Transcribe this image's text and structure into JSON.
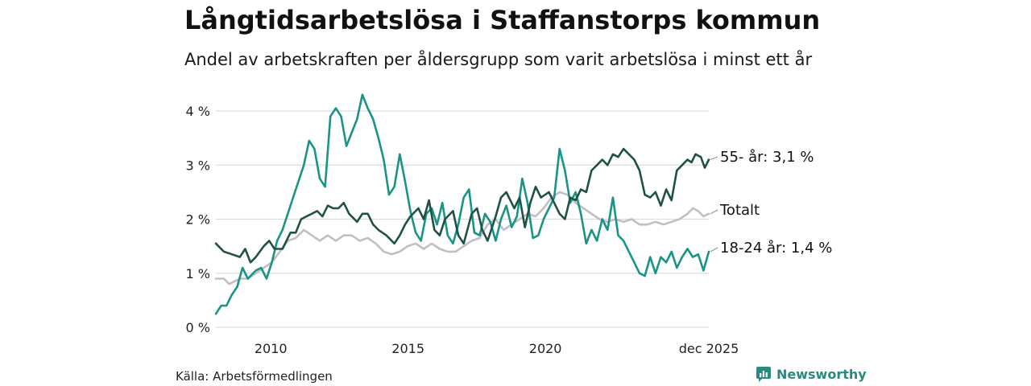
{
  "header": {
    "title": "Långtidsarbetslösa i Staffanstorps kommun",
    "subtitle": "Andel av arbetskraften per åldersgrupp som varit arbetslösa i minst ett år"
  },
  "footer": {
    "source": "Källa: Arbetsförmedlingen",
    "brand": "Newsworthy"
  },
  "colors": {
    "age55": "#1f5245",
    "total": "#c3bec6",
    "age18_24": "#1a9484",
    "grid": "#dddddd"
  },
  "chart_data": {
    "type": "line",
    "title": "Långtidsarbetslösa i Staffanstorps kommun",
    "xlabel": "",
    "ylabel": "",
    "ylim": [
      0,
      4.5
    ],
    "xlim": [
      2008.0,
      2025.95
    ],
    "yticks": [
      0,
      1,
      2,
      3,
      4
    ],
    "ytick_labels": [
      "0 %",
      "1 %",
      "2 %",
      "3 %",
      "4 %"
    ],
    "xticks": [
      2010,
      2015,
      2020,
      2025.95
    ],
    "xtick_labels": [
      "2010",
      "2015",
      "2020",
      "dec 2025"
    ],
    "series": [
      {
        "name": "55- år",
        "key": "age55",
        "end_label": "55- år: 3,1 %",
        "points": [
          [
            2008.0,
            1.55
          ],
          [
            2008.3,
            1.4
          ],
          [
            2008.6,
            1.35
          ],
          [
            2008.9,
            1.3
          ],
          [
            2009.1,
            1.45
          ],
          [
            2009.3,
            1.2
          ],
          [
            2009.5,
            1.3
          ],
          [
            2009.8,
            1.5
          ],
          [
            2010.0,
            1.6
          ],
          [
            2010.2,
            1.45
          ],
          [
            2010.5,
            1.45
          ],
          [
            2010.8,
            1.75
          ],
          [
            2011.0,
            1.75
          ],
          [
            2011.2,
            2.0
          ],
          [
            2011.4,
            2.05
          ],
          [
            2011.6,
            2.1
          ],
          [
            2011.8,
            2.15
          ],
          [
            2012.0,
            2.05
          ],
          [
            2012.2,
            2.25
          ],
          [
            2012.4,
            2.2
          ],
          [
            2012.6,
            2.2
          ],
          [
            2012.8,
            2.3
          ],
          [
            2013.0,
            2.1
          ],
          [
            2013.3,
            1.95
          ],
          [
            2013.5,
            2.1
          ],
          [
            2013.7,
            2.1
          ],
          [
            2013.9,
            1.9
          ],
          [
            2014.1,
            1.8
          ],
          [
            2014.4,
            1.7
          ],
          [
            2014.7,
            1.55
          ],
          [
            2014.9,
            1.7
          ],
          [
            2015.1,
            1.9
          ],
          [
            2015.3,
            2.05
          ],
          [
            2015.6,
            2.2
          ],
          [
            2015.8,
            2.0
          ],
          [
            2016.0,
            2.35
          ],
          [
            2016.2,
            1.8
          ],
          [
            2016.4,
            1.7
          ],
          [
            2016.6,
            2.0
          ],
          [
            2016.9,
            2.15
          ],
          [
            2017.1,
            1.7
          ],
          [
            2017.3,
            1.55
          ],
          [
            2017.6,
            2.1
          ],
          [
            2017.8,
            2.2
          ],
          [
            2018.0,
            1.8
          ],
          [
            2018.2,
            1.6
          ],
          [
            2018.5,
            2.05
          ],
          [
            2018.7,
            2.4
          ],
          [
            2018.9,
            2.5
          ],
          [
            2019.2,
            2.2
          ],
          [
            2019.4,
            2.4
          ],
          [
            2019.6,
            1.85
          ],
          [
            2019.8,
            2.3
          ],
          [
            2020.0,
            2.6
          ],
          [
            2020.2,
            2.4
          ],
          [
            2020.5,
            2.5
          ],
          [
            2020.7,
            2.3
          ],
          [
            2020.9,
            2.1
          ],
          [
            2021.1,
            2.0
          ],
          [
            2021.3,
            2.4
          ],
          [
            2021.5,
            2.35
          ],
          [
            2021.7,
            2.55
          ],
          [
            2021.9,
            2.5
          ],
          [
            2022.1,
            2.9
          ],
          [
            2022.3,
            3.0
          ],
          [
            2022.5,
            3.1
          ],
          [
            2022.7,
            3.0
          ],
          [
            2022.9,
            3.2
          ],
          [
            2023.1,
            3.15
          ],
          [
            2023.3,
            3.3
          ],
          [
            2023.5,
            3.2
          ],
          [
            2023.7,
            3.1
          ],
          [
            2023.9,
            2.9
          ],
          [
            2024.1,
            2.45
          ],
          [
            2024.3,
            2.4
          ],
          [
            2024.5,
            2.5
          ],
          [
            2024.7,
            2.25
          ],
          [
            2024.9,
            2.55
          ],
          [
            2025.1,
            2.35
          ],
          [
            2025.3,
            2.9
          ],
          [
            2025.5,
            3.0
          ],
          [
            2025.7,
            3.1
          ],
          [
            2025.85,
            3.05
          ],
          [
            2026.0,
            3.2
          ],
          [
            2026.2,
            3.15
          ],
          [
            2026.35,
            2.95
          ],
          [
            2026.5,
            3.1
          ]
        ]
      },
      {
        "name": "Totalt",
        "key": "total",
        "end_label": "Totalt",
        "points": [
          [
            2008.0,
            0.9
          ],
          [
            2008.3,
            0.9
          ],
          [
            2008.5,
            0.8
          ],
          [
            2008.9,
            0.9
          ],
          [
            2009.2,
            0.9
          ],
          [
            2009.5,
            1.0
          ],
          [
            2009.8,
            1.1
          ],
          [
            2010.1,
            1.2
          ],
          [
            2010.4,
            1.4
          ],
          [
            2010.7,
            1.6
          ],
          [
            2011.0,
            1.65
          ],
          [
            2011.3,
            1.8
          ],
          [
            2011.6,
            1.7
          ],
          [
            2011.9,
            1.6
          ],
          [
            2012.2,
            1.7
          ],
          [
            2012.5,
            1.6
          ],
          [
            2012.8,
            1.7
          ],
          [
            2013.1,
            1.7
          ],
          [
            2013.4,
            1.6
          ],
          [
            2013.7,
            1.65
          ],
          [
            2014.0,
            1.55
          ],
          [
            2014.3,
            1.4
          ],
          [
            2014.6,
            1.35
          ],
          [
            2014.9,
            1.4
          ],
          [
            2015.2,
            1.5
          ],
          [
            2015.5,
            1.55
          ],
          [
            2015.8,
            1.45
          ],
          [
            2016.1,
            1.55
          ],
          [
            2016.4,
            1.45
          ],
          [
            2016.7,
            1.4
          ],
          [
            2017.0,
            1.4
          ],
          [
            2017.3,
            1.5
          ],
          [
            2017.6,
            1.6
          ],
          [
            2017.9,
            1.65
          ],
          [
            2018.2,
            1.9
          ],
          [
            2018.5,
            2.0
          ],
          [
            2018.8,
            1.8
          ],
          [
            2019.1,
            1.9
          ],
          [
            2019.4,
            2.0
          ],
          [
            2019.7,
            2.1
          ],
          [
            2020.0,
            2.05
          ],
          [
            2020.3,
            2.2
          ],
          [
            2020.6,
            2.4
          ],
          [
            2020.9,
            2.5
          ],
          [
            2021.2,
            2.45
          ],
          [
            2021.5,
            2.3
          ],
          [
            2021.8,
            2.2
          ],
          [
            2022.1,
            2.1
          ],
          [
            2022.4,
            2.0
          ],
          [
            2022.7,
            1.95
          ],
          [
            2023.0,
            2.0
          ],
          [
            2023.3,
            1.95
          ],
          [
            2023.6,
            2.0
          ],
          [
            2023.9,
            1.9
          ],
          [
            2024.2,
            1.9
          ],
          [
            2024.5,
            1.95
          ],
          [
            2024.8,
            1.9
          ],
          [
            2025.1,
            1.95
          ],
          [
            2025.4,
            2.0
          ],
          [
            2025.7,
            2.1
          ],
          [
            2025.9,
            2.2
          ],
          [
            2026.1,
            2.15
          ],
          [
            2026.3,
            2.05
          ],
          [
            2026.5,
            2.1
          ]
        ]
      },
      {
        "name": "18-24 år",
        "key": "age18_24",
        "end_label": "18-24 år: 1,4 %",
        "points": [
          [
            2008.0,
            0.25
          ],
          [
            2008.2,
            0.4
          ],
          [
            2008.4,
            0.4
          ],
          [
            2008.6,
            0.6
          ],
          [
            2008.8,
            0.75
          ],
          [
            2009.0,
            1.1
          ],
          [
            2009.2,
            0.9
          ],
          [
            2009.5,
            1.05
          ],
          [
            2009.7,
            1.1
          ],
          [
            2009.9,
            0.9
          ],
          [
            2010.1,
            1.2
          ],
          [
            2010.3,
            1.6
          ],
          [
            2010.5,
            1.8
          ],
          [
            2010.7,
            2.1
          ],
          [
            2010.9,
            2.4
          ],
          [
            2011.1,
            2.7
          ],
          [
            2011.3,
            3.0
          ],
          [
            2011.5,
            3.45
          ],
          [
            2011.7,
            3.3
          ],
          [
            2011.9,
            2.75
          ],
          [
            2012.1,
            2.6
          ],
          [
            2012.3,
            3.9
          ],
          [
            2012.5,
            4.05
          ],
          [
            2012.7,
            3.9
          ],
          [
            2012.9,
            3.35
          ],
          [
            2013.1,
            3.6
          ],
          [
            2013.3,
            3.85
          ],
          [
            2013.5,
            4.3
          ],
          [
            2013.7,
            4.05
          ],
          [
            2013.9,
            3.85
          ],
          [
            2014.1,
            3.5
          ],
          [
            2014.3,
            3.1
          ],
          [
            2014.5,
            2.45
          ],
          [
            2014.7,
            2.6
          ],
          [
            2014.9,
            3.2
          ],
          [
            2015.1,
            2.7
          ],
          [
            2015.3,
            2.15
          ],
          [
            2015.5,
            1.75
          ],
          [
            2015.7,
            1.6
          ],
          [
            2015.9,
            2.1
          ],
          [
            2016.1,
            2.2
          ],
          [
            2016.3,
            1.9
          ],
          [
            2016.5,
            2.3
          ],
          [
            2016.7,
            1.7
          ],
          [
            2016.9,
            1.55
          ],
          [
            2017.1,
            1.9
          ],
          [
            2017.3,
            2.4
          ],
          [
            2017.5,
            2.55
          ],
          [
            2017.7,
            1.75
          ],
          [
            2017.9,
            1.7
          ],
          [
            2018.1,
            2.1
          ],
          [
            2018.3,
            1.95
          ],
          [
            2018.5,
            1.6
          ],
          [
            2018.7,
            2.0
          ],
          [
            2018.9,
            2.25
          ],
          [
            2019.1,
            1.85
          ],
          [
            2019.3,
            2.05
          ],
          [
            2019.5,
            2.75
          ],
          [
            2019.7,
            2.3
          ],
          [
            2019.9,
            1.65
          ],
          [
            2020.1,
            1.7
          ],
          [
            2020.3,
            2.0
          ],
          [
            2020.5,
            2.2
          ],
          [
            2020.7,
            2.4
          ],
          [
            2020.9,
            3.3
          ],
          [
            2021.1,
            2.9
          ],
          [
            2021.3,
            2.3
          ],
          [
            2021.5,
            2.5
          ],
          [
            2021.7,
            2.1
          ],
          [
            2021.9,
            1.55
          ],
          [
            2022.1,
            1.8
          ],
          [
            2022.3,
            1.6
          ],
          [
            2022.5,
            2.0
          ],
          [
            2022.7,
            1.8
          ],
          [
            2022.9,
            2.4
          ],
          [
            2023.1,
            1.7
          ],
          [
            2023.3,
            1.6
          ],
          [
            2023.5,
            1.4
          ],
          [
            2023.7,
            1.2
          ],
          [
            2023.9,
            1.0
          ],
          [
            2024.1,
            0.95
          ],
          [
            2024.3,
            1.3
          ],
          [
            2024.5,
            1.0
          ],
          [
            2024.7,
            1.3
          ],
          [
            2024.9,
            1.2
          ],
          [
            2025.1,
            1.4
          ],
          [
            2025.3,
            1.1
          ],
          [
            2025.5,
            1.3
          ],
          [
            2025.7,
            1.45
          ],
          [
            2025.9,
            1.3
          ],
          [
            2026.1,
            1.35
          ],
          [
            2026.3,
            1.05
          ],
          [
            2026.5,
            1.4
          ]
        ]
      }
    ]
  }
}
